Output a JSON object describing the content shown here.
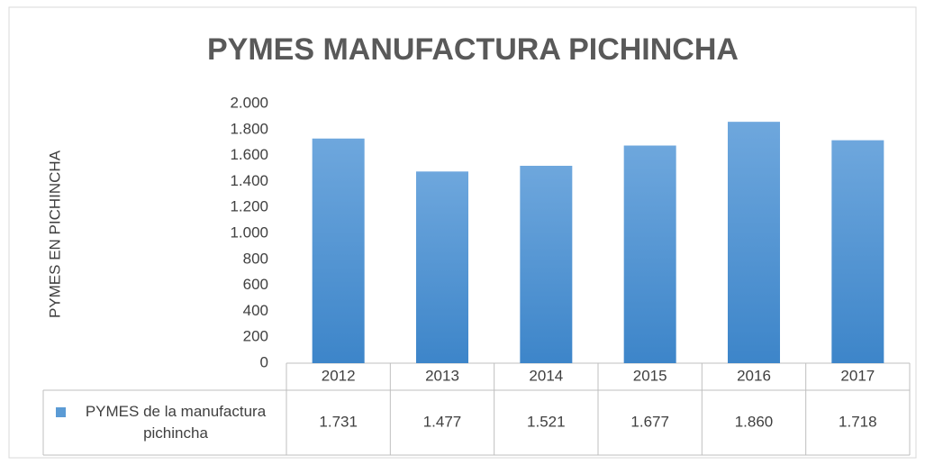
{
  "chart_data": {
    "type": "bar",
    "title": "PYMES MANUFACTURA PICHINCHA",
    "y_axis_label": "PYMES EN PICHINCHA",
    "categories": [
      "2012",
      "2013",
      "2014",
      "2015",
      "2016",
      "2017"
    ],
    "series": [
      {
        "name": "PYMES de la manufactura pichincha",
        "color": "#5b9bd5",
        "values": [
          1731,
          1477,
          1521,
          1677,
          1860,
          1718
        ],
        "value_labels": [
          "1.731",
          "1.477",
          "1.521",
          "1.677",
          "1.860",
          "1.718"
        ]
      }
    ],
    "ylim": [
      0,
      2000
    ],
    "yticks": [
      0,
      200,
      400,
      600,
      800,
      {
        "value": 1000,
        "label": "1.000"
      },
      {
        "value": 1200,
        "label": "1.200"
      },
      {
        "value": 1400,
        "label": "1.400"
      },
      {
        "value": 1600,
        "label": "1.600"
      },
      {
        "value": 1800,
        "label": "1.800"
      },
      {
        "value": 2000,
        "label": "2.000"
      }
    ],
    "grid": false
  }
}
